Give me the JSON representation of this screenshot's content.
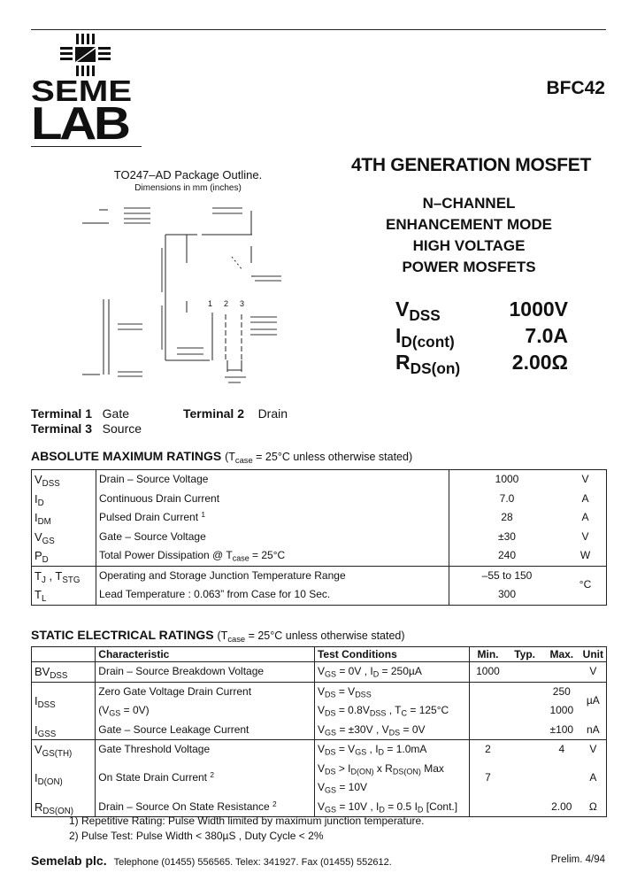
{
  "logo": {
    "line1": "SEME",
    "line2": "LAB"
  },
  "part_number": "BFC42",
  "title": "4TH GENERATION MOSFET",
  "features": [
    "N–CHANNEL",
    "ENHANCEMENT MODE",
    "HIGH VOLTAGE",
    "POWER MOSFETS"
  ],
  "key_specs": [
    {
      "symbol": [
        "V",
        {
          "sub": "DSS"
        }
      ],
      "value": "1000V"
    },
    {
      "symbol": [
        "I",
        {
          "sub": "D(cont)"
        }
      ],
      "value": "7.0A"
    },
    {
      "symbol": [
        "R",
        {
          "sub": "DS(on)"
        }
      ],
      "value": "2.00Ω"
    }
  ],
  "package": {
    "title": "TO247–AD Package Outline.",
    "subtitle": "Dimensions in mm (inches)",
    "pin_labels": [
      "1",
      "2",
      "3"
    ]
  },
  "terminals": [
    {
      "label": "Terminal 1",
      "name": "Gate"
    },
    {
      "label": "Terminal 2",
      "name": "Drain"
    },
    {
      "label": "Terminal 3",
      "name": "Source"
    }
  ],
  "abs_max": {
    "heading": "ABSOLUTE MAXIMUM RATINGS",
    "note": [
      "(T",
      {
        "sub": "case"
      },
      " = 25°C unless otherwise stated)"
    ],
    "rows": [
      {
        "symbol": [
          "V",
          {
            "sub": "DSS"
          }
        ],
        "desc": [
          "Drain – Source Voltage"
        ],
        "value": "1000",
        "unit": "V"
      },
      {
        "symbol": [
          "I",
          {
            "sub": "D"
          }
        ],
        "desc": [
          "Continuous Drain Current"
        ],
        "value": "7.0",
        "unit": "A"
      },
      {
        "symbol": [
          "I",
          {
            "sub": "DM"
          }
        ],
        "desc": [
          "Pulsed Drain Current ",
          {
            "sup": "1"
          }
        ],
        "value": "28",
        "unit": "A"
      },
      {
        "symbol": [
          "V",
          {
            "sub": "GS"
          }
        ],
        "desc": [
          "Gate – Source Voltage"
        ],
        "value": "±30",
        "unit": "V"
      },
      {
        "symbol": [
          "P",
          {
            "sub": "D"
          }
        ],
        "desc": [
          "Total Power Dissipation @ T",
          {
            "sub": "case"
          },
          " = 25°C"
        ],
        "value": "240",
        "unit": "W"
      },
      {
        "symbol": [
          "T",
          {
            "sub": "J"
          },
          " , T",
          {
            "sub": "STG"
          }
        ],
        "desc": [
          "Operating and Storage Junction Temperature Range"
        ],
        "value": "–55 to 150",
        "unit": "°C"
      },
      {
        "symbol": [
          "T",
          {
            "sub": "L"
          }
        ],
        "desc": [
          "Lead Temperature : 0.063” from Case for 10 Sec."
        ],
        "value": "300",
        "unit": ""
      }
    ]
  },
  "static": {
    "heading": "STATIC ELECTRICAL RATINGS",
    "note": [
      "(T",
      {
        "sub": "case"
      },
      " = 25°C unless otherwise stated)"
    ],
    "columns": [
      "Characteristic",
      "Test Conditions",
      "Min.",
      "Typ.",
      "Max.",
      "Unit"
    ],
    "rows": [
      {
        "symbol": [
          "BV",
          {
            "sub": "DSS"
          }
        ],
        "desc": [
          "Drain – Source Breakdown Voltage"
        ],
        "cond": [
          "V",
          {
            "sub": "GS"
          },
          " = 0V , I",
          {
            "sub": "D"
          },
          " = 250µA"
        ],
        "min": "1000",
        "typ": "",
        "max": "",
        "unit": "V"
      },
      {
        "symbol": [
          "I",
          {
            "sub": "DSS"
          }
        ],
        "desc": [
          "Zero Gate Voltage Drain Current"
        ],
        "cond": [
          "V",
          {
            "sub": "DS"
          },
          " = V",
          {
            "sub": "DSS"
          }
        ],
        "min": "",
        "typ": "",
        "max": "250",
        "unit": "µA"
      },
      {
        "symbol": [],
        "desc": [
          "(V",
          {
            "sub": "GS"
          },
          " = 0V)"
        ],
        "cond": [
          "V",
          {
            "sub": "DS"
          },
          " = 0.8V",
          {
            "sub": "DSS"
          },
          " , T",
          {
            "sub": "C"
          },
          " = 125°C"
        ],
        "min": "",
        "typ": "",
        "max": "1000",
        "unit": ""
      },
      {
        "symbol": [
          "I",
          {
            "sub": "GSS"
          }
        ],
        "desc": [
          "Gate – Source Leakage Current"
        ],
        "cond": [
          "V",
          {
            "sub": "GS"
          },
          " = ±30V , V",
          {
            "sub": "DS"
          },
          " = 0V"
        ],
        "min": "",
        "typ": "",
        "max": "±100",
        "unit": "nA"
      },
      {
        "symbol": [
          "V",
          {
            "sub": "GS(TH)"
          }
        ],
        "desc": [
          "Gate Threshold Voltage"
        ],
        "cond": [
          "V",
          {
            "sub": "DS"
          },
          " = V",
          {
            "sub": "GS"
          },
          " , I",
          {
            "sub": "D"
          },
          " = 1.0mA"
        ],
        "min": "2",
        "typ": "",
        "max": "4",
        "unit": "V"
      },
      {
        "symbol": [],
        "desc": [],
        "cond": [
          "V",
          {
            "sub": "DS"
          },
          " > I",
          {
            "sub": "D(ON)"
          },
          " x R",
          {
            "sub": "DS(ON)"
          },
          " Max"
        ],
        "min": "",
        "typ": "",
        "max": "",
        "unit": ""
      },
      {
        "symbol": [
          "I",
          {
            "sub": "D(ON)"
          }
        ],
        "desc": [
          "On State Drain Current ",
          {
            "sup": "2"
          }
        ],
        "cond": [
          "V",
          {
            "sub": "GS"
          },
          " = 10V"
        ],
        "min": "7",
        "typ": "",
        "max": "",
        "unit": "A"
      },
      {
        "symbol": [
          "R",
          {
            "sub": "DS(ON)"
          }
        ],
        "desc": [
          "Drain – Source On State Resistance ",
          {
            "sup": "2"
          }
        ],
        "cond": [
          "V",
          {
            "sub": "GS"
          },
          " = 10V , I",
          {
            "sub": "D"
          },
          " = 0.5 I",
          {
            "sub": "D"
          },
          " [Cont.]"
        ],
        "min": "",
        "typ": "",
        "max": "2.00",
        "unit": "Ω"
      }
    ]
  },
  "footnotes": [
    "1) Repetitive Rating: Pulse Width limited by maximum junction temperature.",
    "2) Pulse Test: Pulse Width < 380µS , Duty Cycle < 2%"
  ],
  "footer": {
    "company": "Semelab plc.",
    "contact": "Telephone (01455) 556565. Telex: 341927. Fax (01455) 552612.",
    "revision": "Prelim. 4/94"
  }
}
